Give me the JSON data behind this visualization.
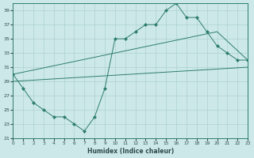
{
  "xlabel": "Humidex (Indice chaleur)",
  "bg_color": "#cce8e8",
  "line_color": "#2e7d6e",
  "grid_color": "#a8cccc",
  "ylim": [
    21,
    40
  ],
  "xlim": [
    0,
    23
  ],
  "yticks": [
    21,
    23,
    25,
    27,
    29,
    31,
    33,
    35,
    37,
    39
  ],
  "xticks": [
    0,
    1,
    2,
    3,
    4,
    5,
    6,
    7,
    8,
    9,
    10,
    11,
    12,
    13,
    14,
    15,
    16,
    17,
    18,
    19,
    20,
    21,
    22,
    23
  ],
  "line1_x": [
    0,
    1,
    2,
    3,
    4,
    5,
    6,
    7,
    8,
    9,
    10,
    11,
    12,
    13,
    14,
    15,
    16,
    17,
    18,
    19,
    20,
    21,
    22,
    23
  ],
  "line1_y": [
    30,
    28,
    26,
    25,
    24,
    24,
    23,
    22,
    24,
    28,
    35,
    35,
    36,
    37,
    37,
    39,
    40,
    38,
    38,
    36,
    34,
    33,
    32,
    32
  ],
  "line2_x": [
    0,
    20,
    23
  ],
  "line2_y": [
    30,
    36,
    32
  ],
  "line3_x": [
    0,
    23
  ],
  "line3_y": [
    29,
    31
  ]
}
